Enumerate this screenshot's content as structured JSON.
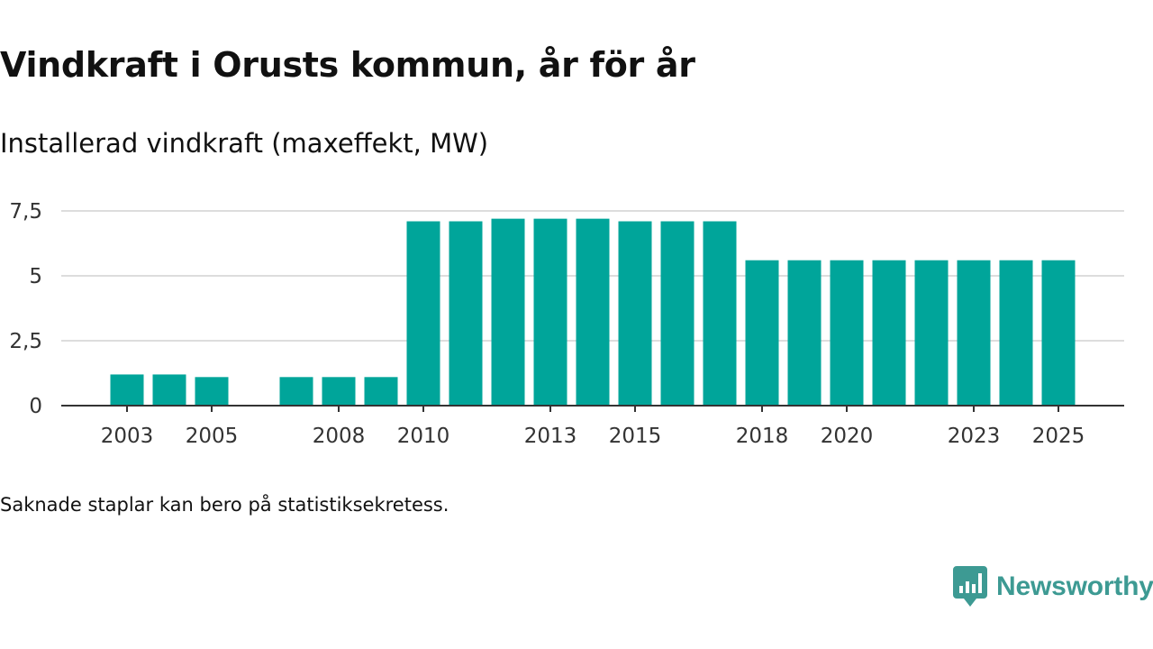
{
  "header": {
    "title": "Vindkraft i Orusts kommun, år för år",
    "subtitle": "Installerad vindkraft (maxeffekt, MW)"
  },
  "footnote": "Saknade staplar kan bero på statistiksekretess.",
  "brand": {
    "name": "Newsworthy"
  },
  "colors": {
    "bar": "#00A59A",
    "grid": "#dddddd",
    "axis": "#333333",
    "brand": "#3d9a93"
  },
  "chart_data": {
    "type": "bar",
    "title": "Vindkraft i Orusts kommun, år för år",
    "subtitle": "Installerad vindkraft (maxeffekt, MW)",
    "xlabel": "",
    "ylabel": "",
    "ylim": [
      0,
      7.5
    ],
    "yticks": [
      0,
      2.5,
      5,
      7.5
    ],
    "ytick_labels": [
      "0",
      "2,5",
      "5",
      "7,5"
    ],
    "categories": [
      "2003",
      "2004",
      "2005",
      "2006",
      "2007",
      "2008",
      "2009",
      "2010",
      "2011",
      "2012",
      "2013",
      "2014",
      "2015",
      "2016",
      "2017",
      "2018",
      "2019",
      "2020",
      "2021",
      "2022",
      "2023",
      "2024",
      "2025"
    ],
    "values": [
      1.2,
      1.2,
      1.1,
      null,
      1.1,
      1.1,
      1.1,
      7.1,
      7.1,
      7.2,
      7.2,
      7.2,
      7.1,
      7.1,
      7.1,
      5.6,
      5.6,
      5.6,
      5.6,
      5.6,
      5.6,
      5.6,
      5.6
    ],
    "xtick_labels": [
      "2003",
      "2005",
      "2008",
      "2010",
      "2013",
      "2015",
      "2018",
      "2020",
      "2023",
      "2025"
    ],
    "grid": true,
    "legend": "none"
  }
}
